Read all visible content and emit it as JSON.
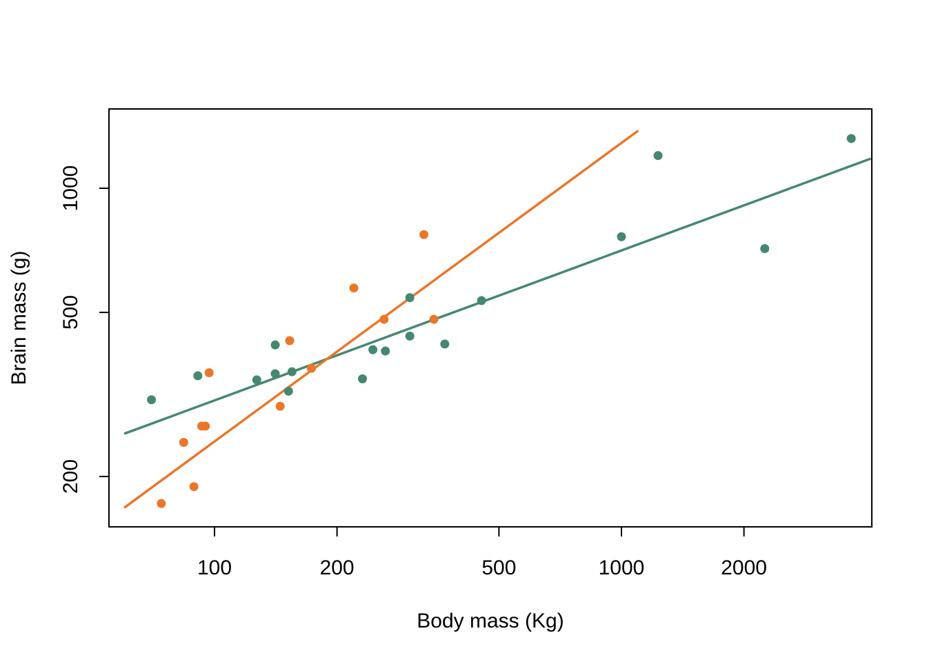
{
  "chart_data": {
    "type": "scatter",
    "title": "",
    "xlabel": "Body mass (Kg)",
    "ylabel": "Brain mass (g)",
    "x_scale": "log",
    "y_scale": "log",
    "xlim": [
      60,
      4100
    ],
    "ylim": [
      160,
      1400
    ],
    "x_ticks": [
      100,
      200,
      500,
      1000,
      2000
    ],
    "x_tick_labels": [
      "100",
      "200",
      "500",
      "1000",
      "2000"
    ],
    "y_ticks": [
      200,
      500,
      1000
    ],
    "y_tick_labels": [
      "200",
      "500",
      "1000"
    ],
    "grid": false,
    "legend": "none",
    "series": [
      {
        "color": "#448870",
        "points": [
          [
            70,
            307
          ],
          [
            91,
            351
          ],
          [
            127,
            343
          ],
          [
            141,
            355
          ],
          [
            141,
            417
          ],
          [
            152,
            322
          ],
          [
            155,
            359
          ],
          [
            231,
            345
          ],
          [
            245,
            406
          ],
          [
            263,
            403
          ],
          [
            302,
            438
          ],
          [
            302,
            543
          ],
          [
            368,
            419
          ],
          [
            453,
            534
          ],
          [
            1000,
            763
          ],
          [
            1230,
            1200
          ],
          [
            2250,
            714
          ],
          [
            3670,
            1320
          ]
        ],
        "fit_line": {
          "x": [
            60,
            4100
          ],
          "y": [
            254,
            1180
          ]
        }
      },
      {
        "color": "#EA7629",
        "points": [
          [
            74,
            172
          ],
          [
            84,
            242
          ],
          [
            89,
            189
          ],
          [
            93,
            265
          ],
          [
            95,
            265
          ],
          [
            97,
            357
          ],
          [
            145,
            296
          ],
          [
            153,
            427
          ],
          [
            173,
            366
          ],
          [
            220,
            573
          ],
          [
            261,
            481
          ],
          [
            327,
            772
          ],
          [
            346,
            481
          ]
        ],
        "fit_line": {
          "x": [
            60,
            1100
          ],
          "y": [
            168,
            1380
          ]
        }
      }
    ]
  }
}
